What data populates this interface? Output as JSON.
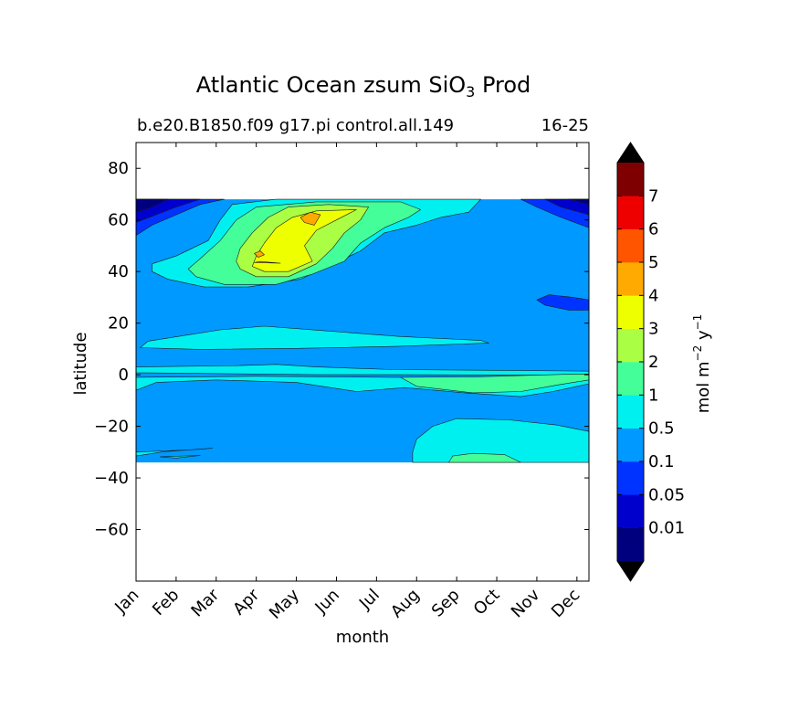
{
  "chart_data": {
    "type": "heatmap",
    "title": {
      "prefix": "Atlantic Ocean zsum SiO",
      "subscript": "3",
      "suffix": " Prod"
    },
    "subtitle_left": "b.e20.B1850.f09 g17.pi control.all.149",
    "subtitle_right": "16-25",
    "xlabel": "month",
    "ylabel": "latitude",
    "x_categories": [
      "Jan",
      "Feb",
      "Mar",
      "Apr",
      "May",
      "Jun",
      "Jul",
      "Aug",
      "Sep",
      "Oct",
      "Nov",
      "Dec"
    ],
    "xlim": [
      0,
      11.3
    ],
    "ylim": [
      -80,
      90
    ],
    "y_ticks": [
      80,
      60,
      40,
      20,
      0,
      -20,
      -40,
      -60
    ],
    "y_tick_labels": [
      "80",
      "60",
      "40",
      "20",
      "0",
      "−20",
      "−40",
      "−60"
    ],
    "data_lat_range": [
      -34,
      68
    ],
    "colorbar": {
      "label": {
        "base": "mol m",
        "exp1": "−2",
        "mid": " y",
        "exp2": "−1"
      },
      "levels": [
        "0.01",
        "0.05",
        "0.1",
        "0.5",
        "1",
        "2",
        "3",
        "4",
        "5",
        "6",
        "7"
      ],
      "colors": [
        "#00007f",
        "#0000cd",
        "#0033ff",
        "#0099ff",
        "#00f0f0",
        "#44ff99",
        "#aaff44",
        "#eeff00",
        "#ffaa00",
        "#ff5500",
        "#ee0000",
        "#7f0000"
      ],
      "extend": "both",
      "over_color": "#000000",
      "under_color": "#000000"
    },
    "regions": [
      {
        "name": "background",
        "level": 3,
        "points": [
          [
            0,
            -34
          ],
          [
            11.3,
            -34
          ],
          [
            11.3,
            68
          ],
          [
            0,
            68
          ]
        ]
      },
      {
        "name": "north-edge-low",
        "level": 2,
        "points": [
          [
            0,
            68
          ],
          [
            2.2,
            68
          ],
          [
            1.6,
            66
          ],
          [
            1.0,
            62
          ],
          [
            0.4,
            58
          ],
          [
            0,
            54
          ]
        ]
      },
      {
        "name": "north-edge-low-2",
        "level": 1,
        "points": [
          [
            0,
            68
          ],
          [
            1.6,
            68
          ],
          [
            1.0,
            65
          ],
          [
            0.5,
            62
          ],
          [
            0,
            59
          ]
        ]
      },
      {
        "name": "north-edge-low-3",
        "level": 0,
        "points": [
          [
            0,
            68
          ],
          [
            0.8,
            68
          ],
          [
            0.4,
            65
          ],
          [
            0,
            63
          ]
        ]
      },
      {
        "name": "ne-edge-low",
        "level": 2,
        "points": [
          [
            11.3,
            68
          ],
          [
            9.6,
            68
          ],
          [
            10.0,
            65
          ],
          [
            10.6,
            61
          ],
          [
            11.3,
            57
          ]
        ]
      },
      {
        "name": "ne-edge-low-2",
        "level": 1,
        "points": [
          [
            11.3,
            68
          ],
          [
            10.2,
            68
          ],
          [
            10.6,
            65
          ],
          [
            11.3,
            62
          ]
        ]
      },
      {
        "name": "ne-edge-low-3",
        "level": 0,
        "points": [
          [
            11.3,
            68
          ],
          [
            10.8,
            68
          ],
          [
            11.3,
            66
          ]
        ]
      },
      {
        "name": "ne-pocket",
        "level": 2,
        "points": [
          [
            10.3,
            31
          ],
          [
            10.9,
            30
          ],
          [
            11.3,
            29
          ],
          [
            11.3,
            25
          ],
          [
            10.8,
            25
          ],
          [
            10.2,
            27
          ],
          [
            10.0,
            29
          ]
        ]
      },
      {
        "name": "north-bloom-0.5",
        "level": 4,
        "points": [
          [
            0.4,
            43
          ],
          [
            1.0,
            46
          ],
          [
            1.8,
            52
          ],
          [
            2.1,
            60
          ],
          [
            2.4,
            66
          ],
          [
            3.5,
            68
          ],
          [
            8.6,
            68
          ],
          [
            8.3,
            63
          ],
          [
            7.6,
            61
          ],
          [
            7.0,
            58
          ],
          [
            6.2,
            55
          ],
          [
            5.6,
            48
          ],
          [
            4.8,
            42
          ],
          [
            4.1,
            37
          ],
          [
            2.8,
            34
          ],
          [
            1.7,
            34
          ],
          [
            0.8,
            37
          ],
          [
            0.4,
            40
          ]
        ]
      },
      {
        "name": "north-bloom-1",
        "level": 5,
        "points": [
          [
            1.3,
            41
          ],
          [
            1.6,
            45
          ],
          [
            2.1,
            52
          ],
          [
            2.5,
            60
          ],
          [
            3.0,
            65
          ],
          [
            4.5,
            67
          ],
          [
            6.6,
            67
          ],
          [
            7.1,
            64
          ],
          [
            6.8,
            61
          ],
          [
            6.2,
            57
          ],
          [
            5.6,
            51
          ],
          [
            5.2,
            44
          ],
          [
            4.4,
            39
          ],
          [
            3.5,
            35
          ],
          [
            2.2,
            35
          ],
          [
            1.5,
            38
          ]
        ]
      },
      {
        "name": "north-bloom-2",
        "level": 6,
        "points": [
          [
            2.5,
            44
          ],
          [
            2.6,
            49
          ],
          [
            2.9,
            55
          ],
          [
            3.3,
            61
          ],
          [
            3.8,
            65
          ],
          [
            4.8,
            66
          ],
          [
            5.8,
            65
          ],
          [
            5.6,
            60
          ],
          [
            5.2,
            55
          ],
          [
            4.9,
            49
          ],
          [
            4.5,
            43
          ],
          [
            3.8,
            38
          ],
          [
            3.0,
            38
          ],
          [
            2.6,
            41
          ]
        ]
      },
      {
        "name": "north-bloom-3",
        "level": 7,
        "points": [
          [
            2.9,
            42
          ],
          [
            3.0,
            46
          ],
          [
            3.2,
            51
          ],
          [
            3.5,
            57
          ],
          [
            3.9,
            61
          ],
          [
            4.5,
            63.5
          ],
          [
            5.5,
            64
          ],
          [
            5.0,
            60
          ],
          [
            4.5,
            56
          ],
          [
            4.2,
            50
          ],
          [
            4.4,
            44
          ],
          [
            3.8,
            40
          ],
          [
            3.2,
            40
          ]
        ]
      },
      {
        "name": "north-bloom-4a",
        "level": 8,
        "points": [
          [
            4.1,
            61
          ],
          [
            4.35,
            63
          ],
          [
            4.6,
            62
          ],
          [
            4.45,
            58
          ],
          [
            4.2,
            59
          ]
        ]
      },
      {
        "name": "north-bloom-4b",
        "level": 8,
        "points": [
          [
            2.95,
            47
          ],
          [
            3.05,
            45.5
          ],
          [
            3.2,
            46.5
          ],
          [
            3.1,
            48
          ]
        ]
      },
      {
        "name": "north-bloom-4c",
        "level": 8,
        "points": [
          [
            2.95,
            43.5
          ],
          [
            3.6,
            43.2
          ],
          [
            3.1,
            43.9
          ]
        ]
      },
      {
        "name": "band-20n",
        "level": 4,
        "points": [
          [
            0.1,
            10.5
          ],
          [
            1.6,
            9.8
          ],
          [
            4.0,
            10.2
          ],
          [
            6.5,
            11.0
          ],
          [
            8.8,
            12.3
          ],
          [
            8.6,
            13.3
          ],
          [
            6.6,
            14.8
          ],
          [
            4.5,
            17.3
          ],
          [
            3.2,
            18.8
          ],
          [
            2.1,
            17.4
          ],
          [
            1.2,
            15.2
          ],
          [
            0.3,
            13.0
          ]
        ]
      },
      {
        "name": "band-equator-north",
        "level": 4,
        "points": [
          [
            0,
            3
          ],
          [
            2.5,
            3.5
          ],
          [
            3.5,
            4
          ],
          [
            4.5,
            3
          ],
          [
            6.4,
            2
          ],
          [
            9.0,
            1.7
          ],
          [
            11.3,
            1.4
          ],
          [
            11.3,
            -0.3
          ],
          [
            9.5,
            -0.1
          ],
          [
            6.5,
            0
          ],
          [
            4.5,
            0
          ],
          [
            0,
            0.8
          ]
        ]
      },
      {
        "name": "band-equator-south",
        "level": 4,
        "points": [
          [
            0,
            -1
          ],
          [
            3.0,
            -0.6
          ],
          [
            6.4,
            -1
          ],
          [
            8.8,
            -1.2
          ],
          [
            11.3,
            -1.4
          ],
          [
            11.3,
            -3.5
          ],
          [
            10.4,
            -6.5
          ],
          [
            9.6,
            -8.5
          ],
          [
            8.2,
            -7
          ],
          [
            6.7,
            -5
          ],
          [
            5.5,
            -6.5
          ],
          [
            4.0,
            -3
          ],
          [
            2.0,
            -2
          ],
          [
            0.5,
            -3
          ],
          [
            0,
            -6
          ]
        ]
      },
      {
        "name": "equatorial-green",
        "level": 5,
        "points": [
          [
            6.6,
            -1
          ],
          [
            8.5,
            -0.8
          ],
          [
            10.8,
            0.2
          ],
          [
            11.3,
            0.3
          ],
          [
            11.3,
            -2
          ],
          [
            10.5,
            -4
          ],
          [
            9.6,
            -6.5
          ],
          [
            8.4,
            -7
          ],
          [
            7.0,
            -4.5
          ]
        ]
      },
      {
        "name": "south-band-0.5",
        "level": 4,
        "points": [
          [
            6.9,
            -34
          ],
          [
            11.3,
            -34
          ],
          [
            11.3,
            -22
          ],
          [
            10.5,
            -19.5
          ],
          [
            9.3,
            -17.5
          ],
          [
            8.0,
            -17
          ],
          [
            7.4,
            -20
          ],
          [
            7.0,
            -25
          ],
          [
            6.9,
            -30
          ]
        ]
      },
      {
        "name": "south-band-1",
        "level": 5,
        "points": [
          [
            7.8,
            -34
          ],
          [
            9.6,
            -34
          ],
          [
            9.2,
            -31
          ],
          [
            8.4,
            -30.5
          ],
          [
            7.9,
            -31.5
          ]
        ]
      },
      {
        "name": "southwest-streak",
        "level": 4,
        "points": [
          [
            0,
            -30
          ],
          [
            1.5,
            -29
          ],
          [
            1.9,
            -28.5
          ],
          [
            0.7,
            -29.8
          ],
          [
            0,
            -31.5
          ]
        ]
      },
      {
        "name": "southwest-streak-2",
        "level": 4,
        "points": [
          [
            0.6,
            -31.8
          ],
          [
            1.6,
            -31.3
          ],
          [
            1.0,
            -32.3
          ]
        ]
      }
    ]
  }
}
